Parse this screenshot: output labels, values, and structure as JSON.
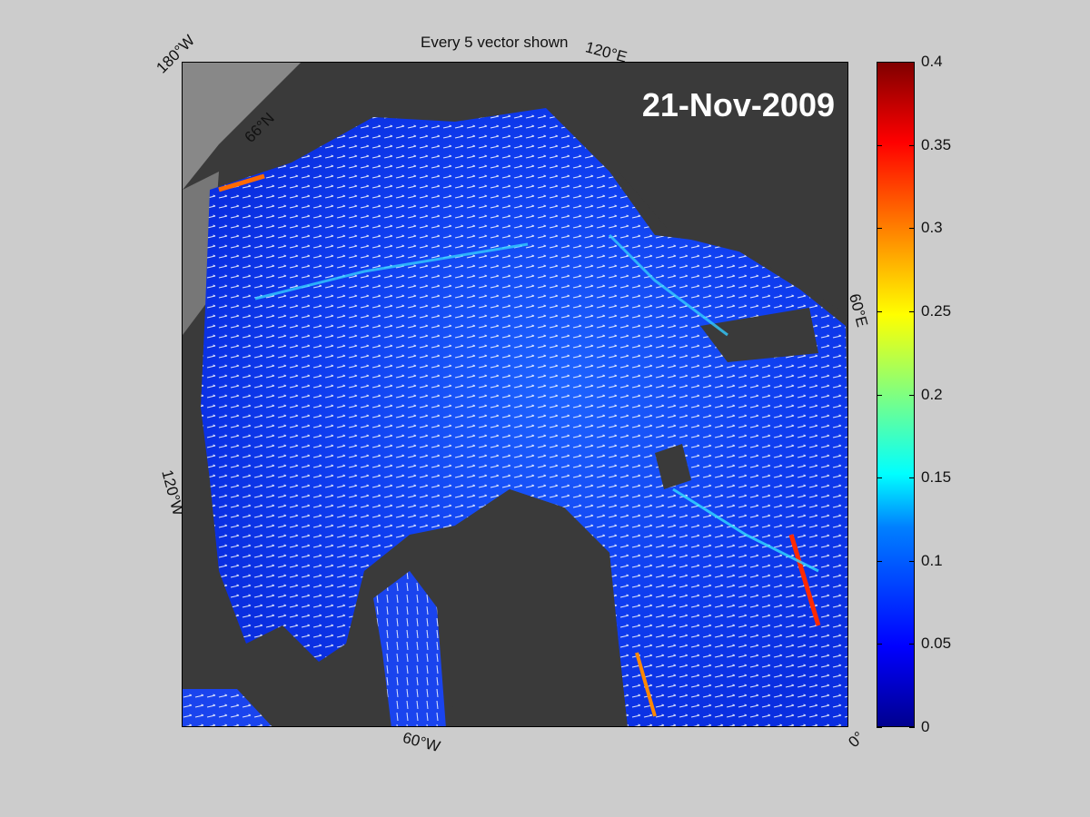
{
  "figure": {
    "title": "Every 5 vector shown",
    "date": "21-Nov-2009"
  },
  "map": {
    "projection": "polar stereographic (Arctic)",
    "edge_labels": {
      "lon_180w": "180°W",
      "lon_120e": "120°E",
      "lon_60e": "60°E",
      "lon_120w": "120°W",
      "lon_60w": "60°W",
      "lon_0": "0°",
      "lat_66n": "66°N"
    },
    "colors": {
      "land": "#3a3a3a",
      "land_outside": "#888888",
      "ocean_low": "#0a3cff",
      "vectors": "#ffffff"
    }
  },
  "colorbar": {
    "colormap": "jet",
    "min": 0,
    "max": 0.4,
    "ticks": [
      "0",
      "0.05",
      "0.1",
      "0.15",
      "0.2",
      "0.25",
      "0.3",
      "0.35",
      "0.4"
    ]
  },
  "chart_data": {
    "type": "heatmap",
    "title": "Every 5 vector shown",
    "annotation": "21-Nov-2009",
    "colorbar_range": [
      0,
      0.4
    ],
    "colorbar_ticks": [
      0,
      0.05,
      0.1,
      0.15,
      0.2,
      0.25,
      0.3,
      0.35,
      0.4
    ]
  }
}
